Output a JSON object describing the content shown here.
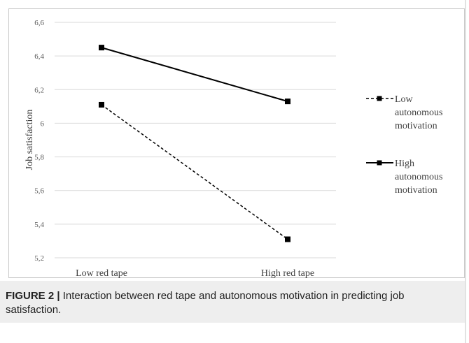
{
  "chart_data": {
    "type": "line",
    "categories": [
      "Low red tape",
      "High red tape"
    ],
    "series": [
      {
        "name": "Low autonomous motivation",
        "values": [
          6.11,
          5.31
        ],
        "dashed": true
      },
      {
        "name": "High autonomous motivation",
        "values": [
          6.45,
          6.13
        ],
        "dashed": false
      }
    ],
    "legend_lines": [
      [
        "Low",
        "autonomous",
        "motivation"
      ],
      [
        "High",
        "autonomous",
        "motivation"
      ]
    ],
    "ylabel": "Job satisfaction",
    "xlabel": "",
    "ylim": [
      5.2,
      6.6
    ],
    "yticks": [
      "5,2",
      "5,4",
      "5,6",
      "5,8",
      "6",
      "6,2",
      "6,4",
      "6,6"
    ],
    "grid": true,
    "legend_position": "right",
    "line_color": "#000000",
    "grid_color": "#d9d9d9"
  },
  "caption": {
    "figure_label": "FIGURE 2 |",
    "text": " Interaction between red tape and autonomous motivation in predicting job satisfaction."
  }
}
